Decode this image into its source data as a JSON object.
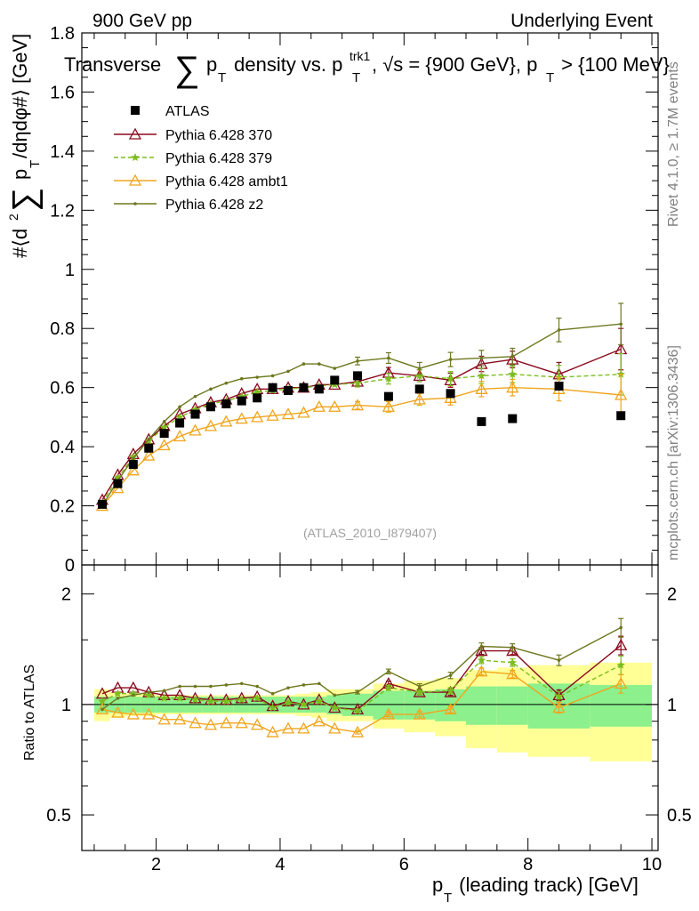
{
  "header": {
    "left": "900 GeV pp",
    "right": "Underlying Event"
  },
  "title": {
    "part1": "Transverse",
    "sum_symbol": "∑",
    "p": "p",
    "t_sub": "T",
    "part2": " density vs. p",
    "trk_sup": "trk1",
    "t_sub2": "T",
    "part3": ", √s = {900 GeV}, p",
    "t_sub3": "T",
    "part4": " > {100 MeV}"
  },
  "ylabel": {
    "part1": "#⟨d",
    "sup2": "2",
    "sum_symbol": "∑",
    "p": "p",
    "t_sub": "T",
    "part2": "/dηdφ#⟩ [GeV]"
  },
  "xlabel": {
    "p": "p",
    "t_sub": "T",
    "rest": " (leading track) [GeV]"
  },
  "ratio_ylabel": "Ratio to ATLAS",
  "side_texts": {
    "rivet": "Rivet 4.1.0, ≥ 1.7M events",
    "mcplots": "mcplots.cern.ch [arXiv:1306.3436]"
  },
  "analysis_id": "(ATLAS_2010_I879407)",
  "colors": {
    "data": "#000000",
    "p370": "#8b0a1e",
    "p379": "#7cbd1e",
    "ambt1": "#f0a51e",
    "z2": "#6e781e",
    "band_inner": "#8cf08c",
    "band_outer": "#ffff96"
  },
  "chart_data": [
    {
      "type": "scatter",
      "panel": "main",
      "xlim": [
        0.8,
        10.1
      ],
      "ylim": [
        0,
        1.8
      ],
      "yticks": [
        0,
        0.2,
        0.4,
        0.6,
        0.8,
        1,
        1.2,
        1.4,
        1.6,
        1.8
      ],
      "ytick_labels": [
        "0",
        "0.2",
        "0.4",
        "0.6",
        "0.8",
        "1",
        "1.2",
        "1.4",
        "1.6",
        "1.8"
      ],
      "xticks": [
        2,
        4,
        6,
        8,
        10
      ],
      "xtick_labels": [
        "2",
        "4",
        "6",
        "8",
        "10"
      ],
      "x": [
        1.13,
        1.38,
        1.63,
        1.88,
        2.13,
        2.38,
        2.63,
        2.88,
        3.13,
        3.38,
        3.63,
        3.88,
        4.13,
        4.38,
        4.63,
        4.88,
        5.25,
        5.75,
        6.25,
        6.75,
        7.25,
        7.75,
        8.5,
        9.5
      ],
      "series": [
        {
          "name": "ATLAS",
          "key": "data",
          "marker": "square",
          "values": [
            0.205,
            0.275,
            0.34,
            0.395,
            0.445,
            0.48,
            0.51,
            0.535,
            0.545,
            0.555,
            0.565,
            0.6,
            0.59,
            0.6,
            0.595,
            0.625,
            0.64,
            0.57,
            0.595,
            0.58,
            0.485,
            0.495,
            0.605,
            0.505
          ]
        },
        {
          "name": "Pythia 6.428 370",
          "key": "p370",
          "marker": "triangle-open",
          "dash": "solid",
          "values": [
            0.22,
            0.305,
            0.375,
            0.425,
            0.47,
            0.51,
            0.53,
            0.55,
            0.56,
            0.58,
            0.595,
            0.595,
            0.6,
            0.6,
            0.61,
            0.61,
            0.62,
            0.65,
            0.64,
            0.625,
            0.68,
            0.695,
            0.645,
            0.73
          ]
        },
        {
          "name": "Pythia 6.428 379",
          "key": "p379",
          "marker": "star",
          "dash": "dashed",
          "values": [
            0.21,
            0.295,
            0.365,
            0.42,
            0.465,
            0.5,
            0.525,
            0.545,
            0.555,
            0.57,
            0.585,
            0.59,
            0.595,
            0.6,
            0.605,
            0.61,
            0.615,
            0.63,
            0.64,
            0.63,
            0.64,
            0.645,
            0.635,
            0.645
          ]
        },
        {
          "name": "Pythia 6.428 ambt1",
          "key": "ambt1",
          "marker": "triangle-open",
          "dash": "solid",
          "values": [
            0.2,
            0.26,
            0.32,
            0.37,
            0.405,
            0.435,
            0.455,
            0.47,
            0.485,
            0.495,
            0.5,
            0.505,
            0.51,
            0.515,
            0.535,
            0.535,
            0.54,
            0.535,
            0.56,
            0.565,
            0.595,
            0.6,
            0.595,
            0.575
          ]
        },
        {
          "name": "Pythia 6.428 z2",
          "key": "z2",
          "marker": "dot",
          "dash": "solid",
          "values": [
            0.2,
            0.285,
            0.36,
            0.425,
            0.485,
            0.535,
            0.57,
            0.595,
            0.615,
            0.63,
            0.635,
            0.64,
            0.655,
            0.68,
            0.68,
            0.665,
            0.69,
            0.7,
            0.665,
            0.695,
            0.7,
            0.705,
            0.795,
            0.815
          ]
        }
      ],
      "error_bars": {
        "x_index": [
          16,
          17,
          18,
          19,
          20,
          21,
          22,
          23
        ],
        "half_width": [
          0.013,
          0.018,
          0.02,
          0.024,
          0.026,
          0.028,
          0.04,
          0.07
        ]
      },
      "legend": {
        "position": "top-left"
      }
    },
    {
      "type": "line",
      "panel": "ratio",
      "xlim": [
        0.8,
        10.1
      ],
      "ylim": [
        0.4,
        2.4
      ],
      "scale": "log",
      "yticks": [
        0.5,
        1,
        2
      ],
      "ytick_labels": [
        "0.5",
        "1",
        "2"
      ],
      "ylabel": "Ratio to ATLAS",
      "x": [
        1.13,
        1.38,
        1.63,
        1.88,
        2.13,
        2.38,
        2.63,
        2.88,
        3.13,
        3.38,
        3.63,
        3.88,
        4.13,
        4.38,
        4.63,
        4.88,
        5.25,
        5.75,
        6.25,
        6.75,
        7.25,
        7.75,
        8.5,
        9.5
      ],
      "bin_edges": [
        1.0,
        1.25,
        1.5,
        1.75,
        2.0,
        2.25,
        2.5,
        2.75,
        3.0,
        3.25,
        3.5,
        3.75,
        4.0,
        4.25,
        4.5,
        4.75,
        5.0,
        5.5,
        6.0,
        6.5,
        7.0,
        7.5,
        8.0,
        9.0,
        10.0
      ],
      "band_inner": [
        0.05,
        0.05,
        0.05,
        0.05,
        0.05,
        0.05,
        0.05,
        0.05,
        0.05,
        0.05,
        0.05,
        0.05,
        0.05,
        0.05,
        0.05,
        0.06,
        0.07,
        0.09,
        0.09,
        0.1,
        0.12,
        0.12,
        0.14,
        0.13
      ],
      "band_outer": [
        0.1,
        0.08,
        0.07,
        0.07,
        0.06,
        0.06,
        0.06,
        0.06,
        0.06,
        0.06,
        0.06,
        0.06,
        0.06,
        0.07,
        0.08,
        0.1,
        0.1,
        0.14,
        0.16,
        0.18,
        0.24,
        0.26,
        0.28,
        0.3
      ],
      "series": [
        {
          "name": "Pythia 6.428 370",
          "key": "p370",
          "marker": "triangle-open",
          "dash": "solid",
          "values": [
            1.07,
            1.11,
            1.11,
            1.08,
            1.06,
            1.06,
            1.04,
            1.03,
            1.03,
            1.04,
            1.05,
            0.99,
            1.02,
            1.0,
            1.03,
            0.98,
            0.97,
            1.14,
            1.08,
            1.08,
            1.4,
            1.4,
            1.06,
            1.45
          ]
        },
        {
          "name": "Pythia 6.428 379",
          "key": "p379",
          "marker": "star",
          "dash": "dashed",
          "values": [
            1.02,
            1.07,
            1.07,
            1.06,
            1.04,
            1.04,
            1.03,
            1.02,
            1.02,
            1.03,
            1.04,
            0.98,
            1.01,
            1.0,
            1.02,
            0.98,
            0.96,
            1.11,
            1.08,
            1.09,
            1.32,
            1.3,
            1.05,
            1.28
          ]
        },
        {
          "name": "Pythia 6.428 ambt1",
          "key": "ambt1",
          "marker": "triangle-open",
          "dash": "solid",
          "values": [
            0.97,
            0.95,
            0.94,
            0.94,
            0.91,
            0.91,
            0.89,
            0.88,
            0.89,
            0.89,
            0.88,
            0.84,
            0.86,
            0.86,
            0.9,
            0.86,
            0.84,
            0.94,
            0.94,
            0.97,
            1.23,
            1.21,
            0.98,
            1.14
          ]
        },
        {
          "name": "Pythia 6.428 z2",
          "key": "z2",
          "marker": "dot",
          "dash": "solid",
          "values": [
            0.97,
            1.04,
            1.06,
            1.08,
            1.09,
            1.12,
            1.12,
            1.12,
            1.13,
            1.14,
            1.12,
            1.07,
            1.11,
            1.13,
            1.14,
            1.06,
            1.08,
            1.23,
            1.12,
            1.2,
            1.44,
            1.43,
            1.32,
            1.62
          ]
        }
      ],
      "reference_line": 1
    }
  ]
}
